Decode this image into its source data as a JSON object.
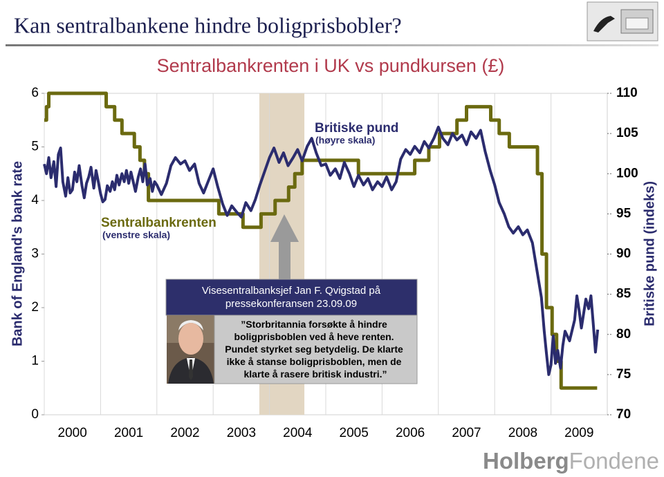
{
  "slide_title": "Kan sentralbankene hindre boligprisbobler?",
  "logo": [
    "Holberg",
    "Fondene"
  ],
  "chart_data": {
    "type": "line",
    "title": "Sentralbankrenten i UK vs pundkursen (£)",
    "y_label": "Bank of England's bank rate",
    "y2_label": "Britiske pund (indeks)",
    "xlim": [
      2000,
      2010
    ],
    "xticks": [
      2000,
      2001,
      2002,
      2003,
      2004,
      2005,
      2006,
      2007,
      2008,
      2009
    ],
    "ylim": [
      0,
      6
    ],
    "yticks": [
      0,
      1,
      2,
      3,
      4,
      5,
      6
    ],
    "y2lim": [
      70,
      110
    ],
    "y2ticks": [
      70,
      75,
      80,
      85,
      90,
      95,
      100,
      105,
      110
    ],
    "grid": true,
    "highlight": {
      "x": [
        2003.82,
        2004.62
      ],
      "color": "#e2d6c2"
    },
    "series": [
      {
        "name": "Sentralbankrenten",
        "color": "#6b6a10",
        "axis": "y",
        "x": [
          2000.0,
          2000.04,
          2000.04,
          2000.08,
          2000.08,
          2001.1,
          2001.1,
          2001.25,
          2001.25,
          2001.38,
          2001.38,
          2001.6,
          2001.6,
          2001.7,
          2001.7,
          2001.78,
          2001.78,
          2001.85,
          2001.85,
          2003.1,
          2003.1,
          2003.53,
          2003.53,
          2003.85,
          2003.85,
          2004.1,
          2004.1,
          2004.34,
          2004.34,
          2004.45,
          2004.45,
          2004.58,
          2004.58,
          2005.58,
          2005.58,
          2006.58,
          2006.58,
          2006.83,
          2006.83,
          2007.02,
          2007.02,
          2007.33,
          2007.33,
          2007.5,
          2007.5,
          2007.93,
          2007.93,
          2008.08,
          2008.08,
          2008.26,
          2008.26,
          2008.76,
          2008.76,
          2008.84,
          2008.84,
          2008.92,
          2008.92,
          2009.02,
          2009.02,
          2009.1,
          2009.1,
          2009.18,
          2009.18,
          2009.82
        ],
        "values": [
          5.5,
          5.5,
          5.75,
          5.75,
          6.0,
          6.0,
          5.75,
          5.75,
          5.5,
          5.5,
          5.25,
          5.25,
          5.0,
          5.0,
          4.75,
          4.75,
          4.5,
          4.5,
          4.0,
          4.0,
          3.75,
          3.75,
          3.5,
          3.5,
          3.75,
          3.75,
          4.0,
          4.0,
          4.25,
          4.25,
          4.5,
          4.5,
          4.75,
          4.75,
          4.5,
          4.5,
          4.75,
          4.75,
          5.0,
          5.0,
          5.25,
          5.25,
          5.5,
          5.5,
          5.75,
          5.75,
          5.5,
          5.5,
          5.25,
          5.25,
          5.0,
          5.0,
          4.5,
          4.5,
          3.0,
          3.0,
          2.0,
          2.0,
          1.5,
          1.5,
          1.0,
          1.0,
          0.5,
          0.5
        ]
      },
      {
        "name": "Britiske pund",
        "color": "#2b2c6e",
        "axis": "y2",
        "x": [
          2000.0,
          2000.04,
          2000.08,
          2000.12,
          2000.17,
          2000.21,
          2000.25,
          2000.29,
          2000.33,
          2000.38,
          2000.42,
          2000.46,
          2000.5,
          2000.54,
          2000.58,
          2000.62,
          2000.67,
          2000.71,
          2000.75,
          2000.79,
          2000.83,
          2000.88,
          2000.92,
          2000.96,
          2001.0,
          2001.04,
          2001.08,
          2001.12,
          2001.17,
          2001.21,
          2001.25,
          2001.29,
          2001.33,
          2001.38,
          2001.42,
          2001.46,
          2001.5,
          2001.54,
          2001.58,
          2001.62,
          2001.67,
          2001.71,
          2001.75,
          2001.79,
          2001.83,
          2001.88,
          2001.92,
          2001.96,
          2002.0,
          2002.08,
          2002.17,
          2002.25,
          2002.33,
          2002.42,
          2002.5,
          2002.58,
          2002.67,
          2002.75,
          2002.83,
          2002.92,
          2003.0,
          2003.08,
          2003.17,
          2003.25,
          2003.33,
          2003.42,
          2003.5,
          2003.58,
          2003.67,
          2003.75,
          2003.83,
          2003.92,
          2004.0,
          2004.08,
          2004.17,
          2004.25,
          2004.33,
          2004.42,
          2004.5,
          2004.58,
          2004.67,
          2004.75,
          2004.83,
          2004.92,
          2005.0,
          2005.08,
          2005.17,
          2005.25,
          2005.33,
          2005.42,
          2005.5,
          2005.58,
          2005.67,
          2005.75,
          2005.83,
          2005.92,
          2006.0,
          2006.08,
          2006.17,
          2006.25,
          2006.33,
          2006.42,
          2006.5,
          2006.58,
          2006.67,
          2006.75,
          2006.83,
          2006.92,
          2007.0,
          2007.08,
          2007.17,
          2007.25,
          2007.33,
          2007.42,
          2007.5,
          2007.58,
          2007.67,
          2007.75,
          2007.83,
          2007.92,
          2008.0,
          2008.08,
          2008.17,
          2008.25,
          2008.33,
          2008.42,
          2008.5,
          2008.58,
          2008.67,
          2008.75,
          2008.83,
          2008.88,
          2008.92,
          2008.96,
          2009.0,
          2009.04,
          2009.08,
          2009.12,
          2009.17,
          2009.21,
          2009.25,
          2009.33,
          2009.42,
          2009.46,
          2009.5,
          2009.54,
          2009.58,
          2009.62,
          2009.67,
          2009.71,
          2009.75,
          2009.79,
          2009.83
        ],
        "values": [
          101.2,
          100.0,
          102.0,
          99.5,
          101.5,
          98.4,
          102.4,
          103.2,
          99.0,
          97.2,
          99.5,
          97.6,
          98.0,
          100.2,
          99.0,
          101.0,
          98.5,
          97.0,
          98.8,
          99.6,
          100.8,
          98.2,
          100.4,
          99.0,
          97.5,
          96.5,
          96.8,
          98.5,
          97.8,
          99.0,
          98.0,
          99.8,
          98.6,
          100.0,
          99.0,
          100.4,
          98.8,
          100.2,
          99.0,
          97.8,
          99.6,
          100.6,
          99.0,
          101.2,
          98.6,
          99.4,
          97.8,
          99.0,
          98.6,
          97.4,
          98.8,
          101.0,
          102.0,
          101.2,
          101.6,
          100.4,
          101.2,
          98.8,
          97.6,
          99.2,
          100.6,
          98.4,
          96.2,
          94.8,
          96.0,
          95.2,
          94.6,
          96.4,
          95.4,
          96.8,
          98.6,
          100.4,
          102.0,
          103.2,
          101.4,
          102.6,
          101.0,
          102.0,
          103.0,
          101.6,
          103.4,
          104.4,
          102.6,
          101.0,
          101.2,
          99.8,
          100.6,
          99.4,
          101.4,
          100.0,
          98.4,
          99.8,
          98.6,
          99.4,
          98.0,
          99.0,
          98.4,
          99.6,
          98.0,
          99.0,
          101.8,
          103.0,
          102.4,
          103.4,
          102.6,
          104.0,
          103.2,
          104.4,
          105.8,
          104.4,
          103.6,
          105.0,
          104.2,
          104.8,
          103.6,
          105.2,
          104.4,
          105.4,
          102.8,
          100.4,
          98.6,
          96.4,
          95.0,
          93.4,
          92.6,
          93.4,
          92.4,
          93.0,
          91.4,
          88.0,
          84.6,
          80.4,
          77.6,
          75.0,
          76.2,
          79.8,
          76.4,
          78.0,
          75.8,
          78.6,
          80.4,
          79.2,
          81.8,
          84.8,
          83.0,
          80.8,
          82.6,
          84.4,
          83.2,
          84.8,
          81.4,
          77.8,
          80.6
        ]
      }
    ],
    "annotations": [
      "Britiske pund",
      "(høyre skala)",
      "Sentralbankrenten",
      "(venstre skala)"
    ],
    "callout": {
      "title": [
        "Visesentralbanksjef Jan F. Qvigstad på",
        "pressekonferansen 23.09.09"
      ],
      "quote": [
        "”Storbritannia forsøkte å hindre",
        "boligprisboblen ved å heve renten.",
        "Pundet styrket seg betydelig. De klarte",
        "ikke å stanse boligprisboblen, men de",
        "klarte å rasere britisk industri.”"
      ]
    }
  }
}
